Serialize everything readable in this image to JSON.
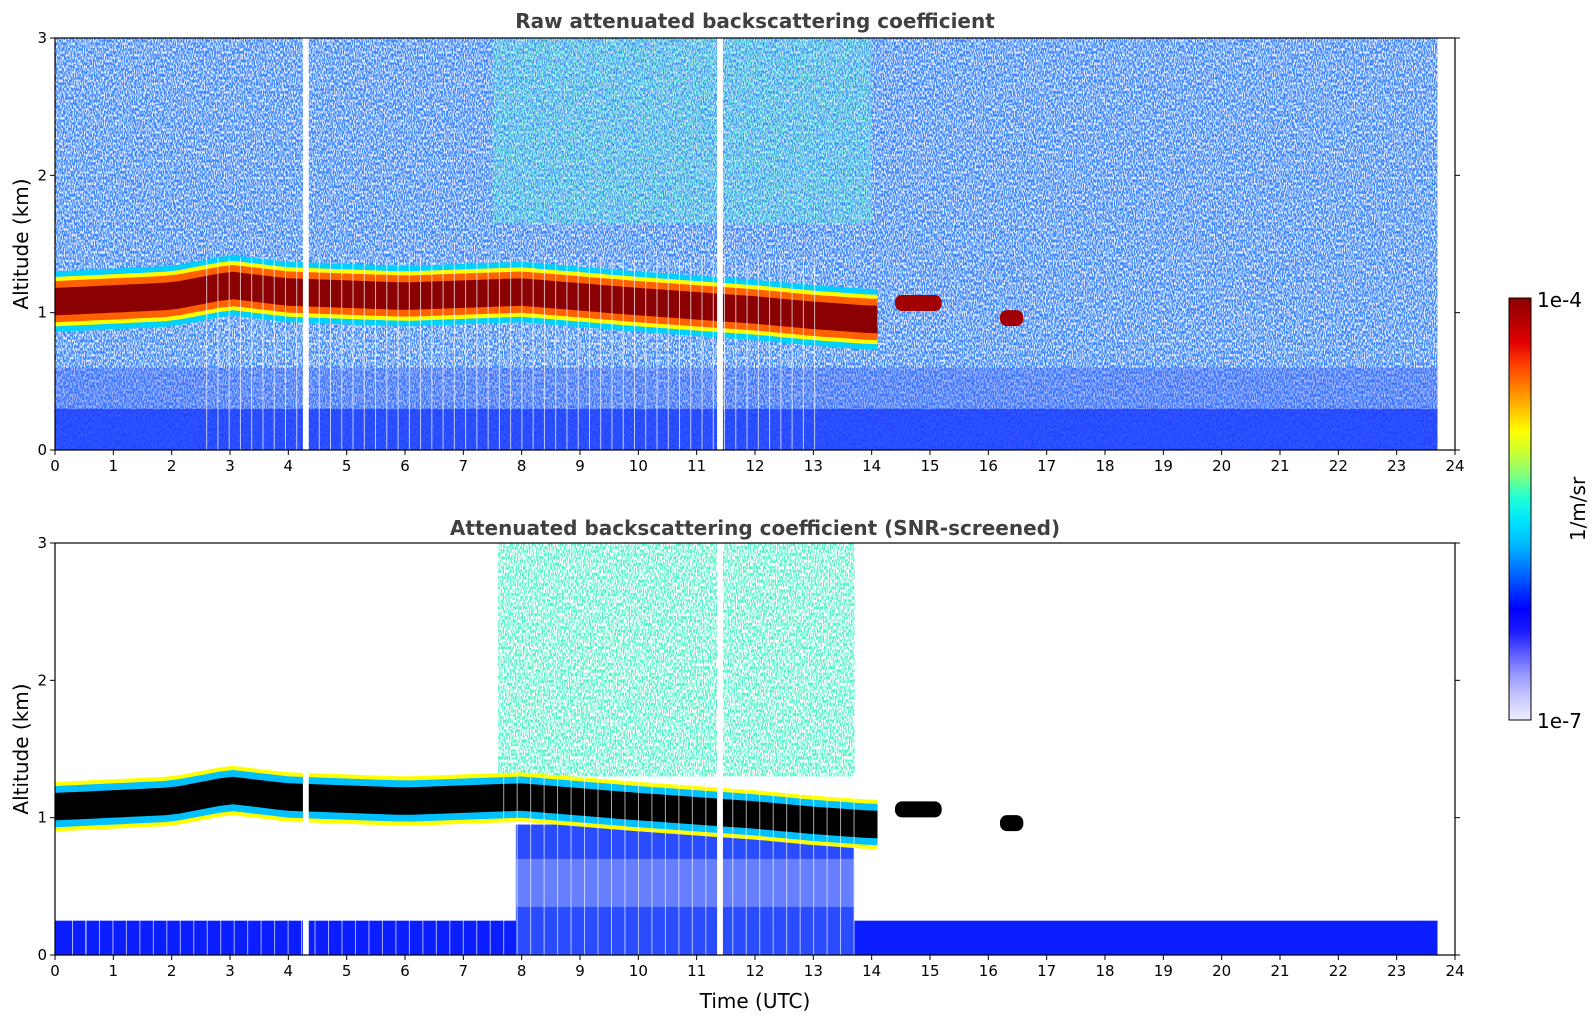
{
  "chart_data": [
    {
      "type": "heatmap",
      "title": "Raw attenuated backscattering coefficient",
      "xlabel": "",
      "ylabel": "Altitude (km)",
      "xlim": [
        0,
        24
      ],
      "ylim": [
        0,
        3
      ],
      "xticks": [
        "0",
        "1",
        "2",
        "3",
        "4",
        "5",
        "6",
        "7",
        "8",
        "9",
        "10",
        "11",
        "12",
        "13",
        "14",
        "15",
        "16",
        "17",
        "18",
        "19",
        "20",
        "21",
        "22",
        "23",
        "24"
      ],
      "yticks": [
        "0",
        "1",
        "2",
        "3"
      ],
      "features": [
        {
          "name": "cloud layer",
          "x_range": [
            0,
            14.1
          ],
          "altitude_km": [
            [
              0,
              1.08
            ],
            [
              2,
              1.12
            ],
            [
              3,
              1.2
            ],
            [
              4,
              1.15
            ],
            [
              6,
              1.12
            ],
            [
              8,
              1.15
            ],
            [
              10,
              1.08
            ],
            [
              12,
              1.02
            ],
            [
              13,
              0.98
            ],
            [
              14,
              0.95
            ]
          ],
          "thickness_km": 0.2,
          "level": "1e-4"
        },
        {
          "name": "cloud patch",
          "x_range": [
            14.4,
            15.2
          ],
          "altitude_km": 1.07,
          "level": "1e-4"
        },
        {
          "name": "cloud patch",
          "x_range": [
            16.2,
            16.6
          ],
          "altitude_km": 0.96,
          "level": "1e-4"
        },
        {
          "name": "boundary layer",
          "x_range": [
            0,
            23.7
          ],
          "altitude_km": [
            0,
            0.3
          ]
        },
        {
          "name": "data gap",
          "x_range": [
            4.25,
            4.35
          ]
        },
        {
          "name": "data gap",
          "x_range": [
            11.35,
            11.45
          ]
        },
        {
          "name": "data end",
          "x_range": [
            23.7,
            24
          ]
        }
      ]
    },
    {
      "type": "heatmap",
      "title": "Attenuated backscattering coefficient (SNR-screened)",
      "xlabel": "Time (UTC)",
      "ylabel": "Altitude (km)",
      "xlim": [
        0,
        24
      ],
      "ylim": [
        0,
        3
      ],
      "xticks": [
        "0",
        "1",
        "2",
        "3",
        "4",
        "5",
        "6",
        "7",
        "8",
        "9",
        "10",
        "11",
        "12",
        "13",
        "14",
        "15",
        "16",
        "17",
        "18",
        "19",
        "20",
        "21",
        "22",
        "23",
        "24"
      ],
      "yticks": [
        "0",
        "1",
        "2",
        "3"
      ],
      "features": [
        {
          "name": "cloud layer",
          "x_range": [
            0,
            14.1
          ],
          "altitude_km": [
            [
              0,
              1.08
            ],
            [
              2,
              1.12
            ],
            [
              3,
              1.2
            ],
            [
              4,
              1.15
            ],
            [
              6,
              1.12
            ],
            [
              8,
              1.15
            ],
            [
              10,
              1.08
            ],
            [
              12,
              1.02
            ],
            [
              13,
              0.98
            ],
            [
              14,
              0.95
            ]
          ],
          "thickness_km": 0.2,
          "level": "saturated"
        },
        {
          "name": "screened noise region",
          "x_range": [
            7.6,
            13.7
          ],
          "altitude_km": [
            1.3,
            3
          ]
        },
        {
          "name": "below-cloud signal",
          "x_range": [
            7.9,
            13.7
          ],
          "altitude_km": [
            0.25,
            0.95
          ]
        },
        {
          "name": "boundary layer",
          "x_range": [
            0,
            23.7
          ],
          "altitude_km": [
            0,
            0.25
          ]
        },
        {
          "name": "cloud patch",
          "x_range": [
            14.4,
            15.2
          ],
          "altitude_km": 1.06
        },
        {
          "name": "cloud patch",
          "x_range": [
            16.2,
            16.6
          ],
          "altitude_km": 0.96
        }
      ]
    }
  ],
  "colorbar": {
    "max_label": "1e-4",
    "min_label": "1e-7",
    "label": "1/m/sr",
    "colors": [
      "#eeeeff",
      "#c9c9ff",
      "#9a9aff",
      "#5c5cff",
      "#1a1aff",
      "#0000ff",
      "#0040ff",
      "#0080ff",
      "#00bfff",
      "#00e5ff",
      "#20ffd6",
      "#7fff7f",
      "#c9ff36",
      "#ffff00",
      "#ffc000",
      "#ff8000",
      "#ff4000",
      "#e00000",
      "#b40000",
      "#8b0000"
    ]
  }
}
